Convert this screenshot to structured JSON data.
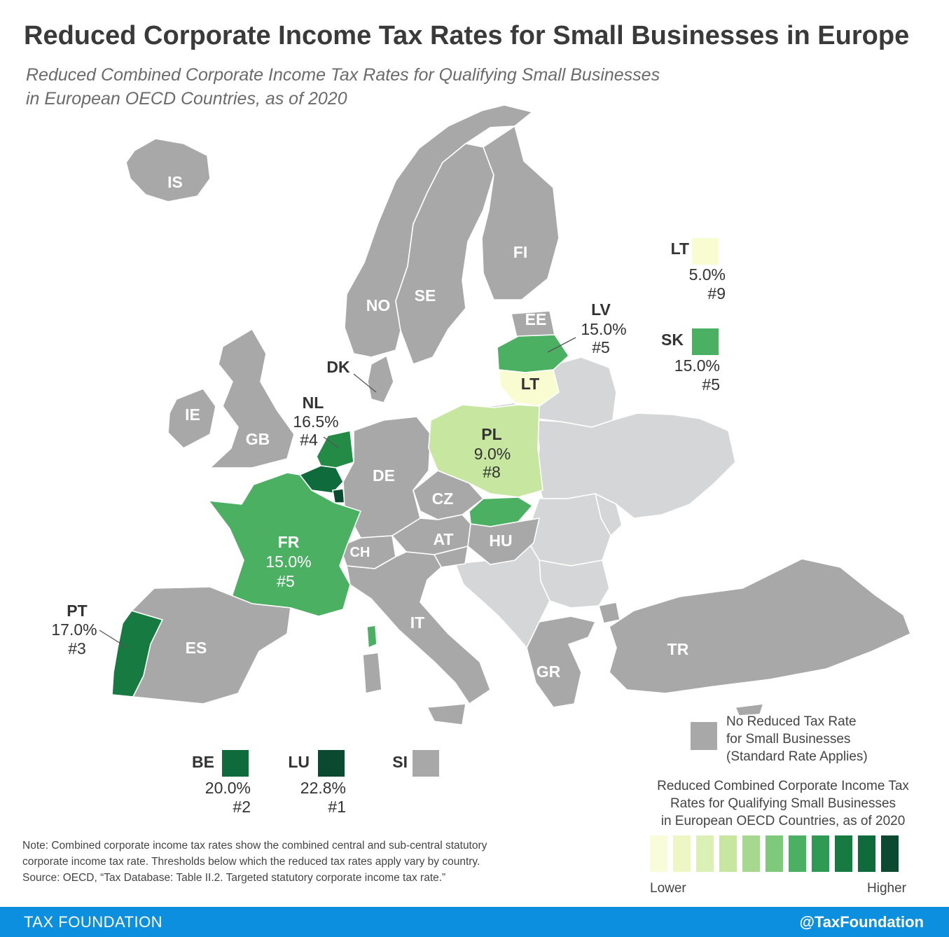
{
  "header": {
    "title": "Reduced Corporate Income Tax Rates for Small Businesses in Europe",
    "subtitle_line1": "Reduced Combined Corporate Income Tax Rates for Qualifying Small Businesses",
    "subtitle_line2": "in European OECD Countries, as of 2020"
  },
  "map": {
    "countries": [
      {
        "code": "IS",
        "rate": null
      },
      {
        "code": "FI",
        "rate": null
      },
      {
        "code": "SE",
        "rate": null
      },
      {
        "code": "NO",
        "rate": null
      },
      {
        "code": "EE",
        "rate": null
      },
      {
        "code": "LV",
        "rate": "15.0%",
        "rank": "#5"
      },
      {
        "code": "LT",
        "rate": "5.0%",
        "rank": "#9"
      },
      {
        "code": "DK",
        "rate": null
      },
      {
        "code": "IE",
        "rate": null
      },
      {
        "code": "GB",
        "rate": null
      },
      {
        "code": "NL",
        "rate": "16.5%",
        "rank": "#4"
      },
      {
        "code": "BE",
        "rate": "20.0%",
        "rank": "#2"
      },
      {
        "code": "LU",
        "rate": "22.8%",
        "rank": "#1"
      },
      {
        "code": "DE",
        "rate": null
      },
      {
        "code": "PL",
        "rate": "9.0%",
        "rank": "#8"
      },
      {
        "code": "CZ",
        "rate": null
      },
      {
        "code": "SK",
        "rate": "15.0%",
        "rank": "#5"
      },
      {
        "code": "AT",
        "rate": null
      },
      {
        "code": "HU",
        "rate": null
      },
      {
        "code": "CH",
        "rate": null
      },
      {
        "code": "SI",
        "rate": null
      },
      {
        "code": "FR",
        "rate": "15.0%",
        "rank": "#5"
      },
      {
        "code": "PT",
        "rate": "17.0%",
        "rank": "#3"
      },
      {
        "code": "ES",
        "rate": null
      },
      {
        "code": "IT",
        "rate": null
      },
      {
        "code": "GR",
        "rate": null
      },
      {
        "code": "TR",
        "rate": null
      }
    ],
    "colors": {
      "no_reduced_rate": "#a8a8a8",
      "non_oecd": "#d5d6d8",
      "LU": "#0b4a30",
      "BE": "#0f6b3c",
      "PT": "#177a41",
      "NL": "#238b45",
      "LV": "#4cb063",
      "SK": "#4cb063",
      "FR": "#4cb063",
      "PL": "#c7e7a0",
      "LT": "#f9fcd0"
    }
  },
  "key_boxes": {
    "lt": {
      "code": "LT",
      "rate": "5.0%",
      "rank": "#9",
      "color": "#f9fcd0"
    },
    "sk": {
      "code": "SK",
      "rate": "15.0%",
      "rank": "#5",
      "color": "#4cb063"
    },
    "be": {
      "code": "BE",
      "rate": "20.0%",
      "rank": "#2",
      "color": "#0f6b3c"
    },
    "lu": {
      "code": "LU",
      "rate": "22.8%",
      "rank": "#1",
      "color": "#0b4a30"
    },
    "si": {
      "code": "SI",
      "color": "#a8a8a8"
    }
  },
  "legend": {
    "no_reduced_line1": "No Reduced Tax Rate",
    "no_reduced_line2": "for Small Businesses",
    "no_reduced_line3": "(Standard Rate Applies)",
    "title_line1": "Reduced Combined Corporate Income Tax",
    "title_line2": "Rates for Qualifying Small Businesses",
    "title_line3": "in European OECD Countries, as of 2020",
    "scale_colors": [
      "#f9fcd8",
      "#eef7c4",
      "#dbf0b4",
      "#c7e7a0",
      "#a6d88f",
      "#7fc97a",
      "#4cb063",
      "#2f9a53",
      "#177a41",
      "#0f6b3c",
      "#0b4a30"
    ],
    "lower": "Lower",
    "higher": "Higher"
  },
  "note": {
    "line1": "Note: Combined corporate income tax rates show the combined central and sub-central statutory",
    "line2": "corporate income tax rate. Thresholds below which the reduced tax rates apply vary by country.",
    "line3": "Source: OECD, “Tax Database: Table II.2. Targeted statutory corporate income tax rate.”"
  },
  "footer": {
    "brand": "TAX FOUNDATION",
    "handle": "@TaxFoundation"
  }
}
